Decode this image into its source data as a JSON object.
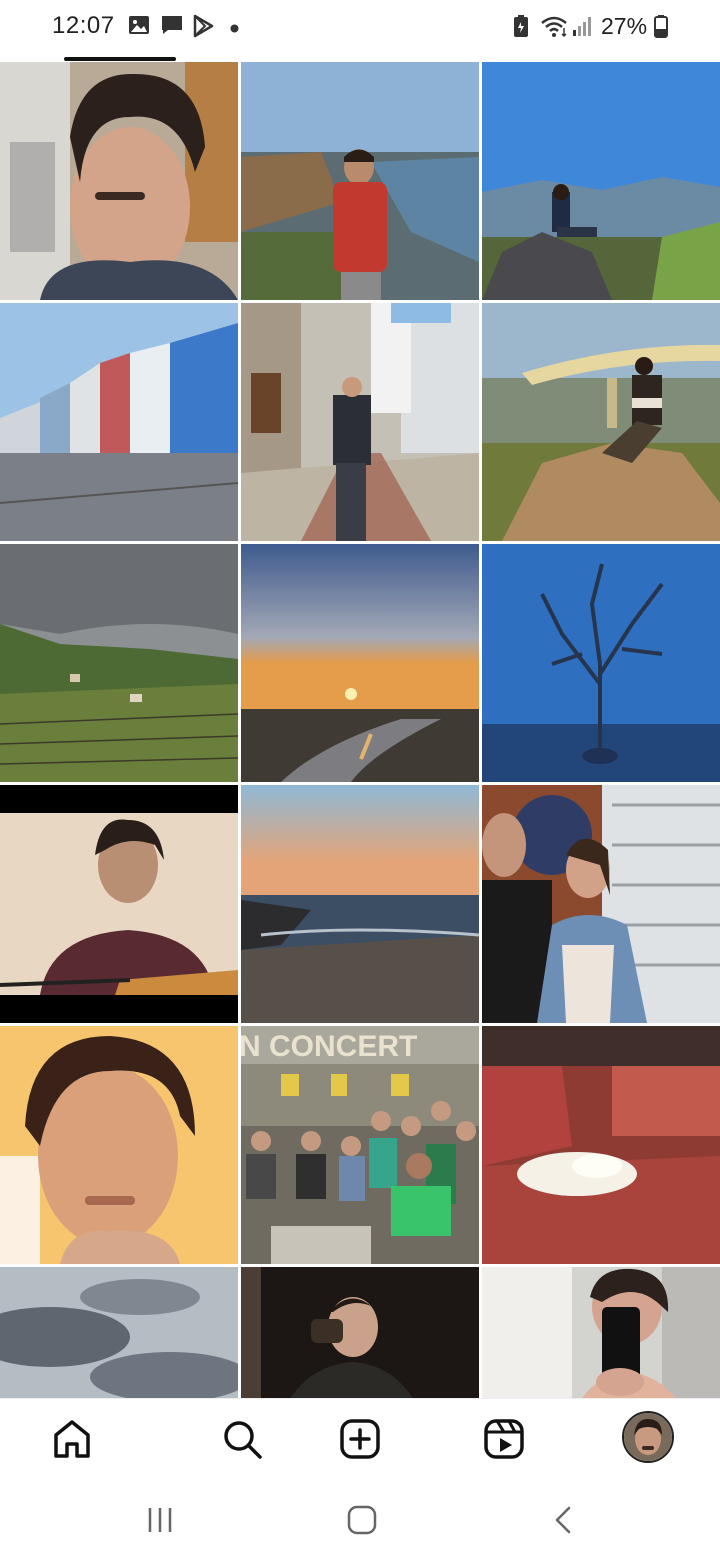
{
  "status_bar": {
    "time": "12:07",
    "battery_percent": "27%",
    "icons": [
      "gallery-icon",
      "message-icon",
      "play-store-icon",
      "dot-icon",
      "battery-saver-icon",
      "wifi-icon",
      "signal-icon",
      "battery-icon"
    ]
  },
  "profile_grid": {
    "active_tab": "posts-grid",
    "posts": [
      {
        "id": "post-1",
        "subject": "selfie"
      },
      {
        "id": "post-2",
        "subject": "riverside city"
      },
      {
        "id": "post-3",
        "subject": "mountain view"
      },
      {
        "id": "post-4",
        "subject": "striped houses"
      },
      {
        "id": "post-5",
        "subject": "street"
      },
      {
        "id": "post-6",
        "subject": "bridge rock"
      },
      {
        "id": "post-7",
        "subject": "vineyard"
      },
      {
        "id": "post-8",
        "subject": "river sunset"
      },
      {
        "id": "post-9",
        "subject": "tree in fog"
      },
      {
        "id": "post-10",
        "subject": "guitar"
      },
      {
        "id": "post-11",
        "subject": "beach sunset"
      },
      {
        "id": "post-12",
        "subject": "couple"
      },
      {
        "id": "post-13",
        "subject": "selfie warm"
      },
      {
        "id": "post-14",
        "subject": "group photo"
      },
      {
        "id": "post-15",
        "subject": "cat on sofa"
      },
      {
        "id": "post-16",
        "subject": "cloudy sky"
      },
      {
        "id": "post-17",
        "subject": "drinking"
      },
      {
        "id": "post-18",
        "subject": "mirror selfie"
      }
    ],
    "poster_text": "N CONCERT"
  },
  "bottom_nav": {
    "items": [
      "home-icon",
      "search-icon",
      "create-icon",
      "reels-icon",
      "profile-avatar"
    ]
  },
  "system_nav": {
    "items": [
      "recents-icon",
      "home-button-icon",
      "back-icon"
    ]
  }
}
